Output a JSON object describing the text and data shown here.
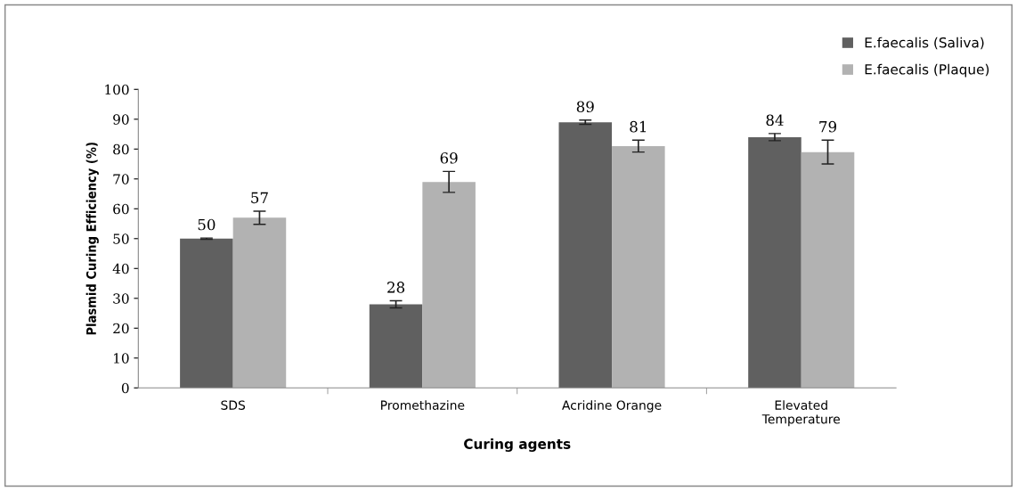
{
  "chart_data": {
    "type": "bar",
    "xlabel": "Curing agents",
    "ylabel": "Plasmid Curing Efficiency (%)",
    "categories": [
      "SDS",
      "Promethazine",
      "Acridine Orange",
      "Elevated\nTemperature"
    ],
    "series": [
      {
        "name": "E.faecalis (Saliva)",
        "color": "#606060",
        "values": [
          50,
          28,
          89,
          84
        ],
        "errors": [
          0.2,
          1.2,
          0.7,
          1.2
        ]
      },
      {
        "name": "E.faecalis (Plaque)",
        "color": "#b2b2b2",
        "values": [
          57,
          69,
          81,
          79
        ],
        "errors": [
          2.2,
          3.5,
          2,
          4
        ]
      }
    ],
    "ylim": [
      0,
      100
    ],
    "yticks": [
      0,
      10,
      20,
      30,
      40,
      50,
      60,
      70,
      80,
      90,
      100
    ],
    "data_labels": true,
    "grid": false,
    "legend": "top right"
  }
}
